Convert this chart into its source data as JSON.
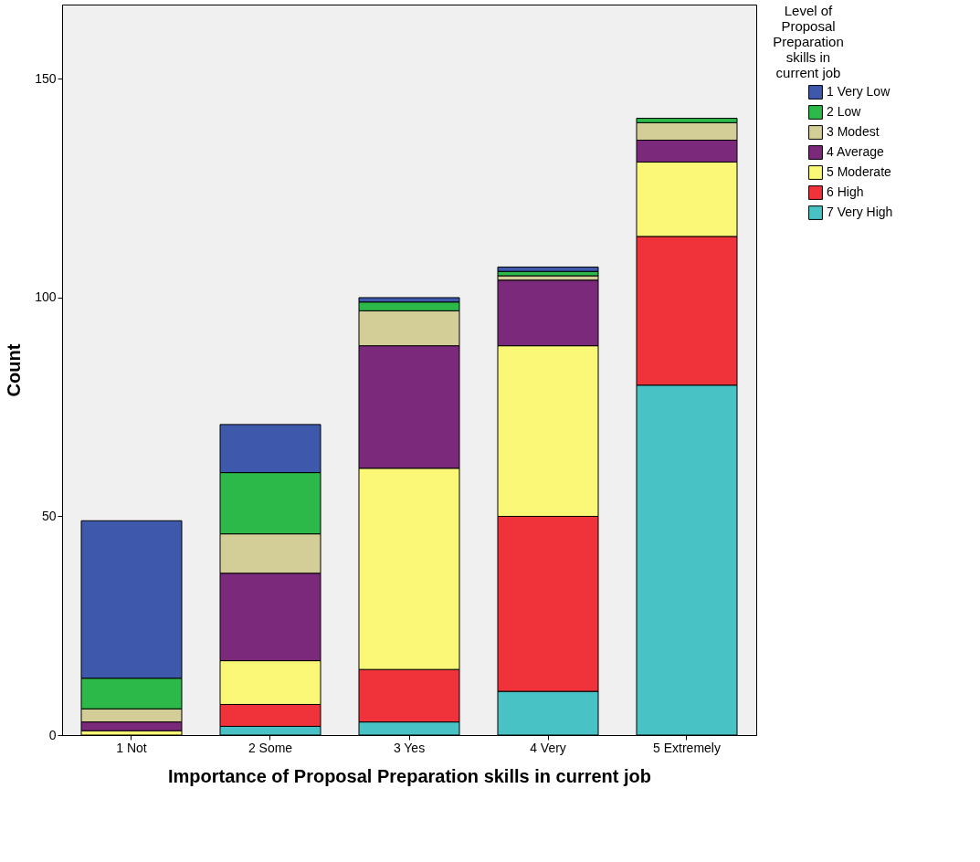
{
  "chart_data": {
    "type": "bar",
    "stacked": true,
    "xlabel": "Importance of Proposal Preparation skills in current job",
    "ylabel": "Count",
    "legend_title": "Level of Proposal Preparation skills in current job",
    "legend": "top right",
    "grid": false,
    "categories": [
      "1 Not",
      "2 Some",
      "3 Yes",
      "4 Very",
      "5 Extremely"
    ],
    "ylim": [
      0,
      167
    ],
    "yticks": [
      0,
      50,
      100,
      150
    ],
    "series": [
      {
        "name": "7 Very High",
        "color": "#48c2c5",
        "values": [
          0,
          2,
          3,
          10,
          80
        ]
      },
      {
        "name": "6 High",
        "color": "#f0323a",
        "values": [
          0,
          5,
          12,
          40,
          34
        ]
      },
      {
        "name": "5 Moderate",
        "color": "#fbf877",
        "values": [
          1,
          10,
          46,
          39,
          17
        ]
      },
      {
        "name": "4 Average",
        "color": "#7b2a7b",
        "values": [
          2,
          20,
          28,
          15,
          5
        ]
      },
      {
        "name": "3 Modest",
        "color": "#d3ce97",
        "values": [
          3,
          9,
          8,
          1,
          4
        ]
      },
      {
        "name": "2 Low",
        "color": "#2db84a",
        "values": [
          7,
          14,
          2,
          1,
          1
        ]
      },
      {
        "name": "1 Very Low",
        "color": "#3e58ac",
        "values": [
          36,
          11,
          1,
          1,
          0
        ]
      }
    ]
  }
}
